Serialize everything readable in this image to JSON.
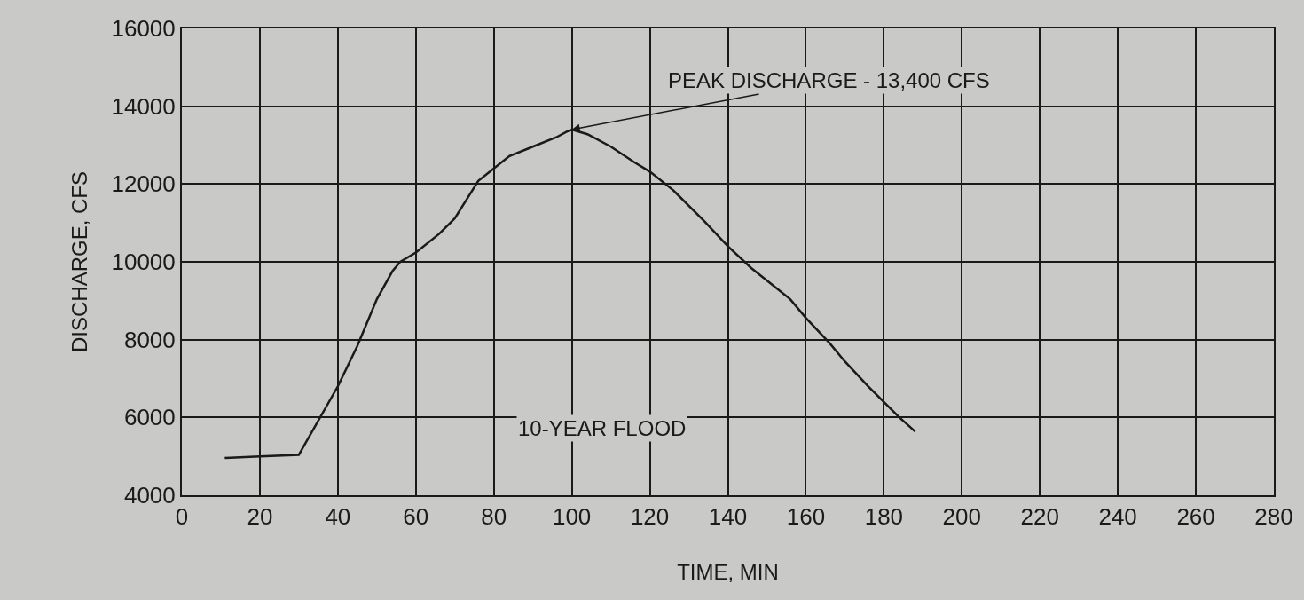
{
  "chart_data": {
    "type": "line",
    "xlabel": "TIME, MIN",
    "ylabel": "DISCHARGE, CFS",
    "x": [
      11,
      20,
      30,
      40,
      45,
      50,
      54,
      56,
      60,
      66,
      70,
      74,
      76,
      80,
      84,
      90,
      96,
      99,
      100,
      104,
      110,
      116,
      120,
      126,
      130,
      134,
      140,
      146,
      150,
      156,
      160,
      166,
      170,
      176,
      180,
      184,
      188
    ],
    "series": [
      {
        "color": "#1a1a1a",
        "values": [
          4960,
          5000,
          5040,
          6800,
          7840,
          9040,
          9760,
          10000,
          10240,
          10720,
          11120,
          11760,
          12080,
          12400,
          12720,
          12960,
          13200,
          13360,
          13400,
          13280,
          12960,
          12560,
          12320,
          11840,
          11440,
          11040,
          10400,
          9840,
          9520,
          9040,
          8560,
          7920,
          7440,
          6800,
          6400,
          6000,
          5640
        ]
      }
    ],
    "xlim": [
      0,
      280
    ],
    "xticks": [
      0,
      20,
      40,
      60,
      80,
      100,
      120,
      140,
      160,
      180,
      200,
      220,
      240,
      260,
      280
    ],
    "ylim": [
      4000,
      16000
    ],
    "yticks": [
      4000,
      6000,
      8000,
      10000,
      12000,
      14000,
      16000
    ],
    "grid": true,
    "marker": "none",
    "line_style": "solid",
    "annotations": [
      {
        "text": "PEAK DISCHARGE - 13,400 CFS",
        "x": 100,
        "y": 13400
      },
      "10-YEAR FLOOD"
    ]
  }
}
